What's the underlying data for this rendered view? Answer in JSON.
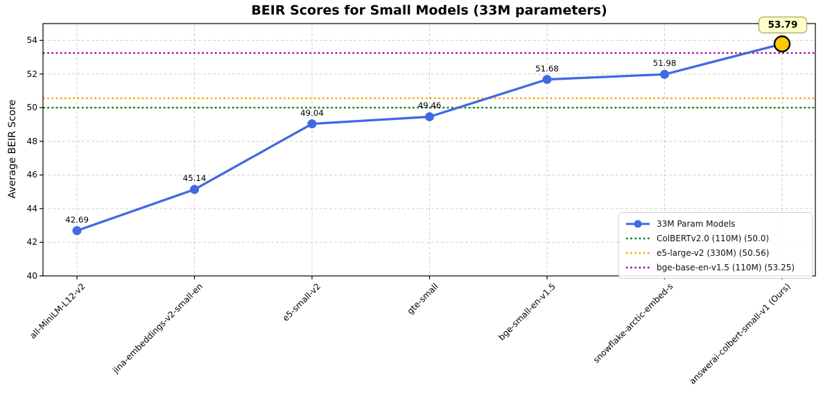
{
  "chart_data": {
    "type": "line",
    "title": "BEIR Scores for Small Models (33M parameters)",
    "xlabel": "",
    "ylabel": "Average BEIR Score",
    "categories": [
      "all-MiniLM-L12-v2",
      "jina-embeddings-v2-small-en",
      "e5-small-v2",
      "gte-small",
      "bge-small-en-v1.5",
      "snowflake-arctic-embed-s",
      "answerai-colbert-small-v1 (Ours)"
    ],
    "series": [
      {
        "name": "33M Param Models",
        "values": [
          42.69,
          45.14,
          49.04,
          49.46,
          51.68,
          51.98,
          53.79
        ],
        "color": "#4169E1",
        "marker": "circle",
        "linestyle": "solid"
      }
    ],
    "point_labels": [
      "42.69",
      "45.14",
      "49.04",
      "49.46",
      "51.68",
      "51.98",
      "53.79"
    ],
    "reference_lines": [
      {
        "label": "ColBERTv2.0 (110M) (50.0)",
        "value": 50.0,
        "color": "#008000",
        "linestyle": "dotted"
      },
      {
        "label": "e5-large-v2 (330M) (50.56)",
        "value": 50.56,
        "color": "#FFA500",
        "linestyle": "dotted"
      },
      {
        "label": "bge-base-en-v1.5 (110M) (53.25)",
        "value": 53.25,
        "color": "#A000A0",
        "linestyle": "dotted"
      }
    ],
    "highlight": {
      "category": "answerai-colbert-small-v1 (Ours)",
      "index": 6,
      "value": 53.79,
      "label": "53.79",
      "marker_color": "#FFC800",
      "marker_edge_color": "#000000",
      "box_fill": "#FFFFC8",
      "box_border": "#97953F"
    },
    "y_ticks": [
      40,
      42,
      44,
      46,
      48,
      50,
      52,
      54
    ],
    "ylim": [
      40,
      55
    ],
    "grid": true,
    "grid_color": "#c9c9c9",
    "legend_position": "lower right"
  }
}
